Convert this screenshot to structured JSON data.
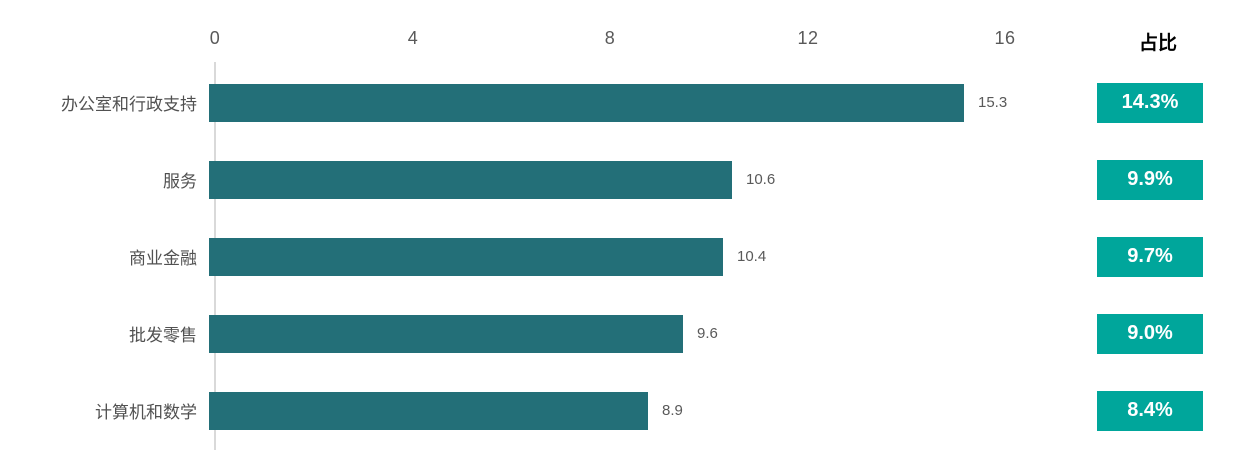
{
  "chart_data": {
    "type": "bar",
    "orientation": "horizontal",
    "title": "",
    "categories": [
      "办公室和行政支持",
      "服务",
      "商业金融",
      "批发零售",
      "计算机和数学"
    ],
    "values": [
      15.3,
      10.6,
      10.4,
      9.6,
      8.9
    ],
    "value_labels": [
      "15.3",
      "10.6",
      "10.4",
      "9.6",
      "8.9"
    ],
    "share_column": {
      "header": "占比",
      "values": [
        "14.3%",
        "9.9%",
        "9.7%",
        "9.0%",
        "8.4%"
      ]
    },
    "x_axis": {
      "position": "top",
      "ticks": [
        0,
        4,
        8,
        12,
        16
      ],
      "min": 0,
      "max": 16
    },
    "legend": "none",
    "grid": "off",
    "colors": {
      "bar": "#236F78",
      "badge_background": "#00A69B",
      "badge_text": "#FFFFFF",
      "tick_label": "#595959",
      "value_label": "#595959",
      "category_label": "#515151",
      "share_header_text": "#000000",
      "axis_line": "#D9D9D9",
      "background": "#FFFFFF"
    }
  }
}
